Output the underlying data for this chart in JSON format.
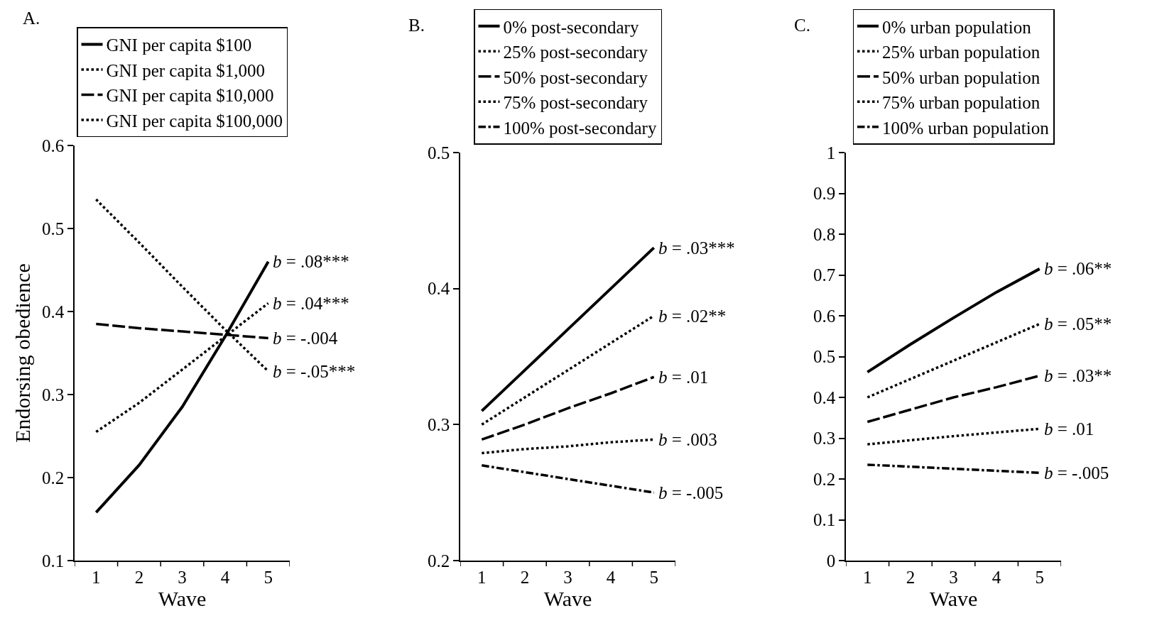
{
  "chart_data": [
    {
      "type": "line",
      "title": "A.",
      "xlabel": "Wave",
      "ylabel": "Endorsing obedience",
      "categories": [
        "1",
        "2",
        "3",
        "4",
        "5"
      ],
      "ylim": [
        0.1,
        0.6
      ],
      "yticks": [
        0.1,
        0.2,
        0.3,
        0.4,
        0.5,
        0.6
      ],
      "grid": false,
      "legend": "top",
      "marker": "none",
      "series": [
        {
          "name": "GNI per capita $100",
          "color": "#000000",
          "line_style": "solid",
          "values": [
            0.158,
            0.215,
            0.285,
            0.37,
            0.46
          ]
        },
        {
          "name": "GNI per capita $1,000",
          "color": "#000000",
          "line_style": "dotted",
          "values": [
            0.255,
            0.29,
            0.33,
            0.37,
            0.41
          ]
        },
        {
          "name": "GNI per capita $10,000",
          "color": "#000000",
          "line_style": "dashed",
          "values": [
            0.385,
            0.38,
            0.376,
            0.372,
            0.368
          ]
        },
        {
          "name": "GNI per capita $100,000",
          "color": "#000000",
          "line_style": "dotted",
          "values": [
            0.535,
            0.483,
            0.43,
            0.378,
            0.328
          ]
        }
      ],
      "annotations": [
        {
          "text": "b = .08***",
          "x": "5",
          "y": 0.46
        },
        {
          "text": "b = .04***",
          "x": "5",
          "y": 0.41
        },
        {
          "text": "b = -.004",
          "x": "5",
          "y": 0.368
        },
        {
          "text": "b = -.05***",
          "x": "5",
          "y": 0.328
        }
      ]
    },
    {
      "type": "line",
      "title": "B.",
      "xlabel": "Wave",
      "categories": [
        "1",
        "2",
        "3",
        "4",
        "5"
      ],
      "ylim": [
        0.2,
        0.5
      ],
      "yticks": [
        0.2,
        0.3,
        0.4,
        0.5
      ],
      "grid": false,
      "legend": "top",
      "marker": "none",
      "series": [
        {
          "name": "0% post-secondary",
          "color": "#000000",
          "line_style": "solid",
          "values": [
            0.31,
            0.34,
            0.37,
            0.4,
            0.43
          ]
        },
        {
          "name": "25% post-secondary",
          "color": "#000000",
          "line_style": "dotted",
          "values": [
            0.3,
            0.32,
            0.34,
            0.36,
            0.38
          ]
        },
        {
          "name": "50% post-secondary",
          "color": "#000000",
          "line_style": "dashed",
          "values": [
            0.289,
            0.3,
            0.312,
            0.323,
            0.335
          ]
        },
        {
          "name": "75% post-secondary",
          "color": "#000000",
          "line_style": "dotted",
          "values": [
            0.279,
            0.282,
            0.284,
            0.287,
            0.289
          ]
        },
        {
          "name": "100% post-secondary",
          "color": "#000000",
          "line_style": "dashdot",
          "values": [
            0.27,
            0.265,
            0.26,
            0.255,
            0.25
          ]
        }
      ],
      "annotations": [
        {
          "text": "b = .03***",
          "x": "5",
          "y": 0.43
        },
        {
          "text": "b = .02**",
          "x": "5",
          "y": 0.38
        },
        {
          "text": "b = .01",
          "x": "5",
          "y": 0.335
        },
        {
          "text": "b = .003",
          "x": "5",
          "y": 0.289
        },
        {
          "text": "b = -.005",
          "x": "5",
          "y": 0.25
        }
      ]
    },
    {
      "type": "line",
      "title": "C.",
      "xlabel": "Wave",
      "categories": [
        "1",
        "2",
        "3",
        "4",
        "5"
      ],
      "ylim": [
        0,
        1
      ],
      "yticks": [
        0,
        0.1,
        0.2,
        0.3,
        0.4,
        0.5,
        0.6,
        0.7,
        0.8,
        0.9,
        1
      ],
      "grid": false,
      "legend": "top",
      "marker": "none",
      "series": [
        {
          "name": "0% urban population",
          "color": "#000000",
          "line_style": "solid",
          "values": [
            0.462,
            0.53,
            0.595,
            0.658,
            0.715
          ]
        },
        {
          "name": "25% urban population",
          "color": "#000000",
          "line_style": "dotted",
          "values": [
            0.4,
            0.445,
            0.49,
            0.535,
            0.58
          ]
        },
        {
          "name": "50% urban population",
          "color": "#000000",
          "line_style": "dashed",
          "values": [
            0.34,
            0.37,
            0.4,
            0.425,
            0.453
          ]
        },
        {
          "name": "75% urban population",
          "color": "#000000",
          "line_style": "dotted",
          "values": [
            0.285,
            0.295,
            0.305,
            0.314,
            0.323
          ]
        },
        {
          "name": "100% urban population",
          "color": "#000000",
          "line_style": "dashdot",
          "values": [
            0.235,
            0.23,
            0.225,
            0.22,
            0.215
          ]
        }
      ],
      "annotations": [
        {
          "text": "b = .06**",
          "x": "5",
          "y": 0.715
        },
        {
          "text": "b = .05**",
          "x": "5",
          "y": 0.58
        },
        {
          "text": "b = .03**",
          "x": "5",
          "y": 0.453
        },
        {
          "text": "b = .01",
          "x": "5",
          "y": 0.323
        },
        {
          "text": "b = -.005",
          "x": "5",
          "y": 0.215
        }
      ]
    }
  ]
}
